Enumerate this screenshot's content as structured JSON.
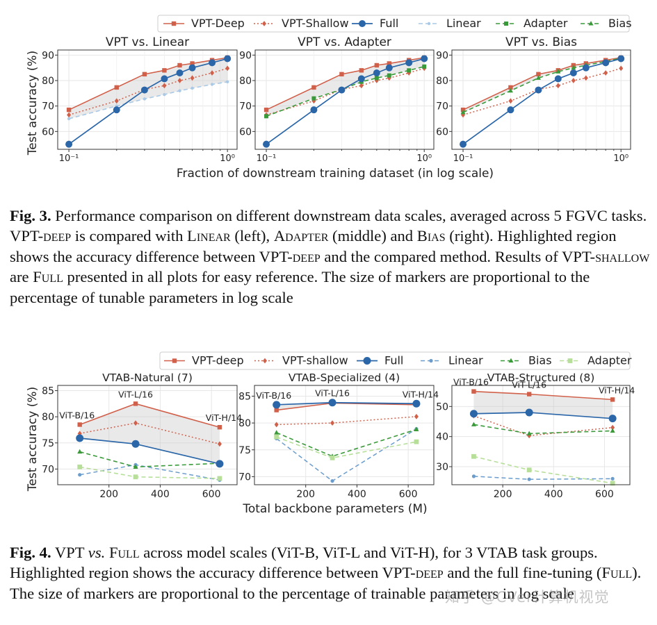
{
  "figure3": {
    "legend": [
      "VPT-Deep",
      "VPT-Shallow",
      "Full",
      "Linear",
      "Adapter",
      "Bias"
    ],
    "ylabel": "Test accuracy (%)",
    "xlabel": "Fraction of downstream training dataset (in log scale)",
    "caption": {
      "label": "Fig. 3.",
      "parts": [
        " Performance comparison on different downstream data scales, averaged across 5 FGVC tasks. VPT-",
        "deep",
        " is compared with ",
        "Linear",
        " (left), ",
        "Adapter",
        " (middle) and ",
        "Bias",
        " (right). Highlighted region shows the accuracy difference between VPT-",
        "deep",
        " and the compared method. Results of VPT-",
        "shallow",
        " are ",
        "Full",
        " presented in all plots for easy reference. The size of markers are proportional to the percentage of tunable parameters in log scale"
      ]
    }
  },
  "figure4": {
    "legend": [
      "VPT-deep",
      "VPT-shallow",
      "Full",
      "Linear",
      "Bias",
      "Adapter"
    ],
    "ylabel": "Test accuracy (%)",
    "xlabel": "Total backbone parameters (M)",
    "point_labels": [
      "ViT-B/16",
      "ViT-L/16",
      "ViT-H/14"
    ],
    "caption": {
      "label": "Fig. 4.",
      "parts": [
        " VPT ",
        "vs.",
        " ",
        "Full",
        " across model scales (ViT-B, ViT-L and ViT-H), for 3 VTAB task groups. Highlighted region shows the accuracy difference between VPT-",
        "deep",
        " and the full fine-tuning (",
        "Full",
        "). The size of markers are proportional to the percentage of trainable parameters in log scale"
      ]
    }
  },
  "watermark": "知乎 @CVer计算机视觉",
  "chart_data": [
    {
      "type": "line",
      "title": "VPT vs. Linear",
      "x": [
        0.1,
        0.2,
        0.3,
        0.4,
        0.5,
        0.6,
        0.8,
        1.0
      ],
      "x_ticks": [
        "10⁻¹",
        "10⁰"
      ],
      "xscale": "log",
      "ylim": [
        53,
        92
      ],
      "y_ticks": [
        60,
        70,
        80,
        90
      ],
      "series": [
        {
          "name": "VPT-Deep",
          "values": [
            68.5,
            77.3,
            82.5,
            84.0,
            86.0,
            86.7,
            88.0,
            89.0
          ]
        },
        {
          "name": "VPT-Shallow",
          "values": [
            66.5,
            72.0,
            76.5,
            78.0,
            80.0,
            81.0,
            83.0,
            84.8
          ]
        },
        {
          "name": "Full",
          "values": [
            55.0,
            68.5,
            76.3,
            80.7,
            83.0,
            85.0,
            87.0,
            88.6
          ]
        },
        {
          "name": "Linear",
          "values": [
            65.0,
            70.0,
            72.8,
            74.5,
            76.0,
            77.0,
            78.5,
            79.5
          ]
        }
      ],
      "shade_between": [
        "VPT-Deep",
        "Linear"
      ]
    },
    {
      "type": "line",
      "title": "VPT vs. Adapter",
      "x": [
        0.1,
        0.2,
        0.3,
        0.4,
        0.5,
        0.6,
        0.8,
        1.0
      ],
      "x_ticks": [
        "10⁻¹",
        "10⁰"
      ],
      "xscale": "log",
      "ylim": [
        53,
        92
      ],
      "y_ticks": [
        60,
        70,
        80,
        90
      ],
      "series": [
        {
          "name": "VPT-Deep",
          "values": [
            68.5,
            77.3,
            82.5,
            84.0,
            86.0,
            86.7,
            88.0,
            89.0
          ]
        },
        {
          "name": "VPT-Shallow",
          "values": [
            66.5,
            72.0,
            76.5,
            78.0,
            80.0,
            81.0,
            83.0,
            84.8
          ]
        },
        {
          "name": "Full",
          "values": [
            55.0,
            68.5,
            76.3,
            80.7,
            83.0,
            85.0,
            87.0,
            88.6
          ]
        },
        {
          "name": "Adapter",
          "values": [
            66.0,
            73.0,
            76.5,
            79.5,
            81.0,
            82.0,
            84.0,
            85.5
          ]
        }
      ],
      "shade_between": [
        "VPT-Deep",
        "Adapter"
      ]
    },
    {
      "type": "line",
      "title": "VPT vs. Bias",
      "x": [
        0.1,
        0.2,
        0.3,
        0.4,
        0.5,
        0.6,
        0.8,
        1.0
      ],
      "x_ticks": [
        "10⁻¹",
        "10⁰"
      ],
      "xscale": "log",
      "ylim": [
        53,
        92
      ],
      "y_ticks": [
        60,
        70,
        80,
        90
      ],
      "series": [
        {
          "name": "VPT-Deep",
          "values": [
            68.5,
            77.3,
            82.5,
            84.0,
            86.0,
            86.7,
            88.0,
            89.0
          ]
        },
        {
          "name": "VPT-Shallow",
          "values": [
            66.5,
            72.0,
            76.5,
            78.0,
            80.0,
            81.0,
            83.0,
            84.8
          ]
        },
        {
          "name": "Full",
          "values": [
            55.0,
            68.5,
            76.3,
            80.7,
            83.0,
            85.0,
            87.0,
            88.6
          ]
        },
        {
          "name": "Bias",
          "values": [
            67.5,
            76.0,
            81.0,
            83.5,
            85.0,
            86.0,
            87.5,
            88.8
          ]
        }
      ],
      "shade_between": [
        "VPT-Deep",
        "Bias"
      ]
    },
    {
      "type": "line",
      "title": "VTAB-Natural (7)",
      "x": [
        86,
        304,
        632
      ],
      "xlim": [
        0,
        700
      ],
      "x_ticks": [
        200,
        400,
        600
      ],
      "ylim": [
        67,
        86
      ],
      "y_ticks": [
        70,
        75,
        80,
        85
      ],
      "series": [
        {
          "name": "VPT-deep",
          "values": [
            78.5,
            82.5,
            78.0
          ]
        },
        {
          "name": "VPT-shallow",
          "values": [
            76.8,
            78.8,
            74.8
          ]
        },
        {
          "name": "Full",
          "values": [
            75.9,
            74.8,
            71.0
          ]
        },
        {
          "name": "Linear",
          "values": [
            68.9,
            70.8,
            67.9
          ]
        },
        {
          "name": "Bias",
          "values": [
            73.3,
            70.4,
            71.1
          ]
        },
        {
          "name": "Adapter",
          "values": [
            70.4,
            68.5,
            68.2
          ]
        }
      ],
      "shade_between": [
        "VPT-deep",
        "Full"
      ]
    },
    {
      "type": "line",
      "title": "VTAB-Specialized (4)",
      "x": [
        86,
        304,
        632
      ],
      "xlim": [
        0,
        700
      ],
      "x_ticks": [
        200,
        400,
        600
      ],
      "ylim": [
        68.5,
        87
      ],
      "y_ticks": [
        70,
        75,
        80,
        85
      ],
      "series": [
        {
          "name": "VPT-deep",
          "values": [
            82.4,
            83.7,
            83.4
          ]
        },
        {
          "name": "VPT-shallow",
          "values": [
            79.7,
            80.0,
            81.2
          ]
        },
        {
          "name": "Full",
          "values": [
            83.4,
            83.8,
            83.6
          ]
        },
        {
          "name": "Linear",
          "values": [
            77.1,
            69.2,
            78.9
          ]
        },
        {
          "name": "Bias",
          "values": [
            78.2,
            73.8,
            78.8
          ]
        },
        {
          "name": "Adapter",
          "values": [
            77.4,
            73.5,
            76.5
          ]
        }
      ],
      "shade_between": [
        "VPT-deep",
        "Full"
      ]
    },
    {
      "type": "line",
      "title": "VTAB-Structured (8)",
      "x": [
        86,
        304,
        632
      ],
      "xlim": [
        0,
        700
      ],
      "x_ticks": [
        200,
        400,
        600
      ],
      "ylim": [
        24,
        57
      ],
      "y_ticks": [
        30,
        40,
        50
      ],
      "series": [
        {
          "name": "VPT-deep",
          "values": [
            55.0,
            54.1,
            52.3
          ]
        },
        {
          "name": "VPT-shallow",
          "values": [
            46.9,
            40.3,
            43.0
          ]
        },
        {
          "name": "Full",
          "values": [
            47.6,
            48.0,
            46.0
          ]
        },
        {
          "name": "Linear",
          "values": [
            26.8,
            25.8,
            26.0
          ]
        },
        {
          "name": "Bias",
          "values": [
            44.0,
            41.0,
            41.9
          ]
        },
        {
          "name": "Adapter",
          "values": [
            33.4,
            28.9,
            24.5
          ]
        }
      ],
      "shade_between": [
        "VPT-deep",
        "Full"
      ]
    }
  ]
}
